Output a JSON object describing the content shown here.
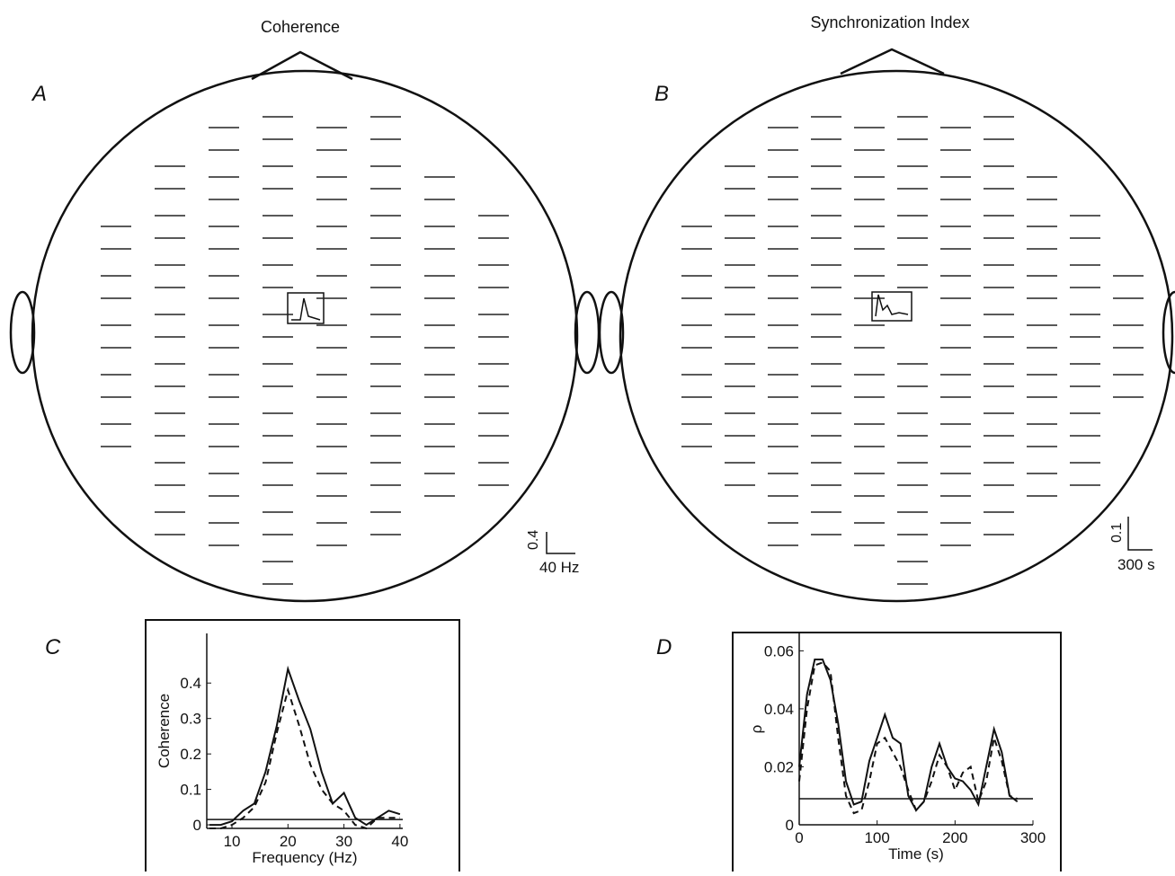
{
  "figure": {
    "titles": [
      "Coherence",
      "Synchronization Index"
    ],
    "panel_labels": [
      "A",
      "B",
      "C",
      "D"
    ],
    "scale_bars": [
      {
        "value": "0.4",
        "unit": "40 Hz"
      },
      {
        "value": "0.1",
        "unit": "300 s"
      }
    ]
  },
  "chart_data": [
    {
      "type": "line",
      "x_label": "Frequency (Hz)",
      "y_label": "Coherence",
      "x": [
        6,
        8,
        10,
        12,
        14,
        16,
        18,
        20,
        22,
        24,
        26,
        28,
        30,
        32,
        34,
        36,
        38,
        40
      ],
      "series": [
        {
          "style": "solid",
          "color": "#111111",
          "values": [
            0,
            0,
            0.01,
            0.04,
            0.06,
            0.15,
            0.28,
            0.44,
            0.35,
            0.27,
            0.15,
            0.06,
            0.09,
            0.02,
            0,
            0.02,
            0.04,
            0.03
          ]
        },
        {
          "style": "dashed",
          "color": "#111111",
          "values": [
            -0.01,
            -0.01,
            0,
            0.02,
            0.05,
            0.12,
            0.26,
            0.38,
            0.28,
            0.17,
            0.1,
            0.06,
            0.04,
            0,
            -0.01,
            0.02,
            0.02,
            0.02
          ]
        }
      ],
      "threshold": 0.015,
      "xlim": [
        5.5,
        40.5
      ],
      "ylim": [
        -0.01,
        0.54
      ],
      "xticks": [
        10,
        20,
        30,
        40
      ],
      "yticks": [
        0,
        0.1,
        0.2,
        0.3,
        0.4
      ]
    },
    {
      "type": "line",
      "x_label": "Time (s)",
      "y_label": "ρ",
      "x": [
        0,
        10,
        20,
        30,
        40,
        50,
        60,
        70,
        80,
        90,
        100,
        110,
        120,
        130,
        140,
        150,
        160,
        170,
        180,
        190,
        200,
        210,
        220,
        230,
        240,
        250,
        260,
        270,
        280
      ],
      "series": [
        {
          "style": "solid",
          "color": "#111111",
          "values": [
            0.02,
            0.045,
            0.057,
            0.057,
            0.05,
            0.035,
            0.015,
            0.007,
            0.008,
            0.022,
            0.03,
            0.038,
            0.03,
            0.028,
            0.01,
            0.005,
            0.008,
            0.02,
            0.028,
            0.02,
            0.016,
            0.015,
            0.012,
            0.007,
            0.02,
            0.033,
            0.025,
            0.01,
            0.008
          ]
        },
        {
          "style": "dashed",
          "color": "#111111",
          "values": [
            0.015,
            0.04,
            0.055,
            0.056,
            0.053,
            0.03,
            0.01,
            0.004,
            0.005,
            0.015,
            0.028,
            0.03,
            0.025,
            0.02,
            0.012,
            0.005,
            0.008,
            0.015,
            0.024,
            0.02,
            0.012,
            0.018,
            0.02,
            0.008,
            0.015,
            0.03,
            0.022,
            0.01,
            0.009
          ]
        }
      ],
      "threshold": 0.009,
      "xlim": [
        0,
        300
      ],
      "ylim": [
        0,
        0.066
      ],
      "xticks": [
        0,
        100,
        200,
        300
      ],
      "yticks": [
        0,
        0.02,
        0.04,
        0.06
      ]
    }
  ]
}
